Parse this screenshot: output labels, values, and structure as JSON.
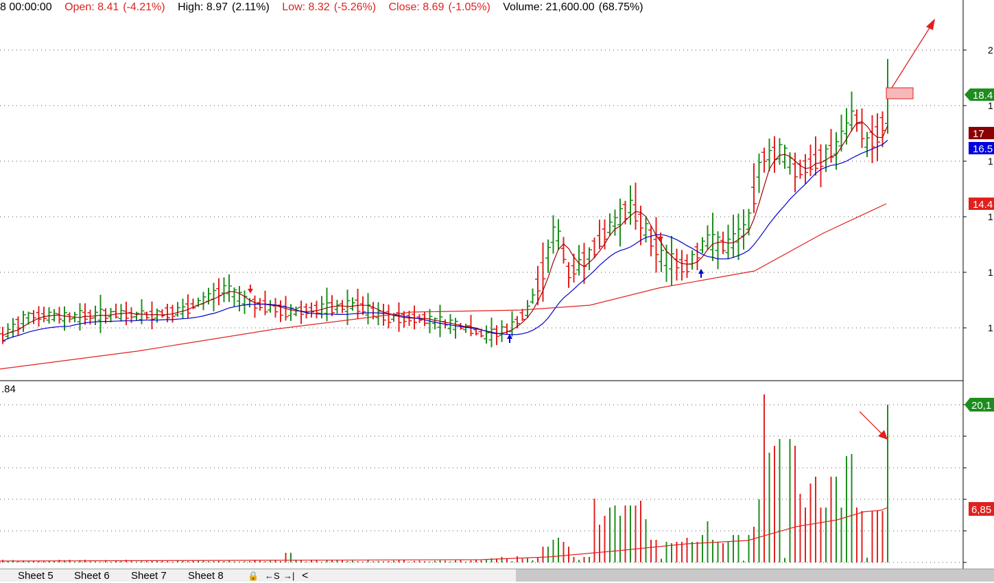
{
  "info": {
    "time": "8 00:00:00",
    "open": "Open: 8.41",
    "open_pct": "(-4.21%)",
    "high": "High: 8.97",
    "high_pct": "(2.11%)",
    "low": "Low: 8.32",
    "low_pct": "(-5.26%)",
    "close": "Close: 8.69",
    "close_pct": "(-1.05%)",
    "volume": "Volume: 21,600.00",
    "volume_pct": "(68.75%)"
  },
  "price_axis": {
    "ticks": [
      "2",
      "1",
      "1",
      "1",
      "1",
      "1"
    ],
    "tags": [
      {
        "text": "18.4",
        "bg": "#1e8c1e"
      },
      {
        "text": "17",
        "bg": "#8b0000"
      },
      {
        "text": "16.5",
        "bg": "#0000e0"
      },
      {
        "text": "14.4",
        "bg": "#e0201e"
      }
    ]
  },
  "volume_axis": {
    "label_left": ".84",
    "tags": [
      {
        "text": "20,1",
        "bg": "#1e8c1e"
      },
      {
        "text": "6,85",
        "bg": "#e0201e"
      }
    ]
  },
  "colors": {
    "up": "#1e8c1e",
    "down": "#e0201e",
    "ma_fast": "#a00000",
    "ma_mid": "#0000cc",
    "ma_slow": "#e0201e",
    "annot": "#e0201e"
  },
  "tabs": [
    "Sheet 5",
    "Sheet 6",
    "Sheet 7",
    "Sheet 8"
  ],
  "nav": {
    "lock": "🔒",
    "first": "←S",
    "last": "→|",
    "prev": "<"
  }
}
